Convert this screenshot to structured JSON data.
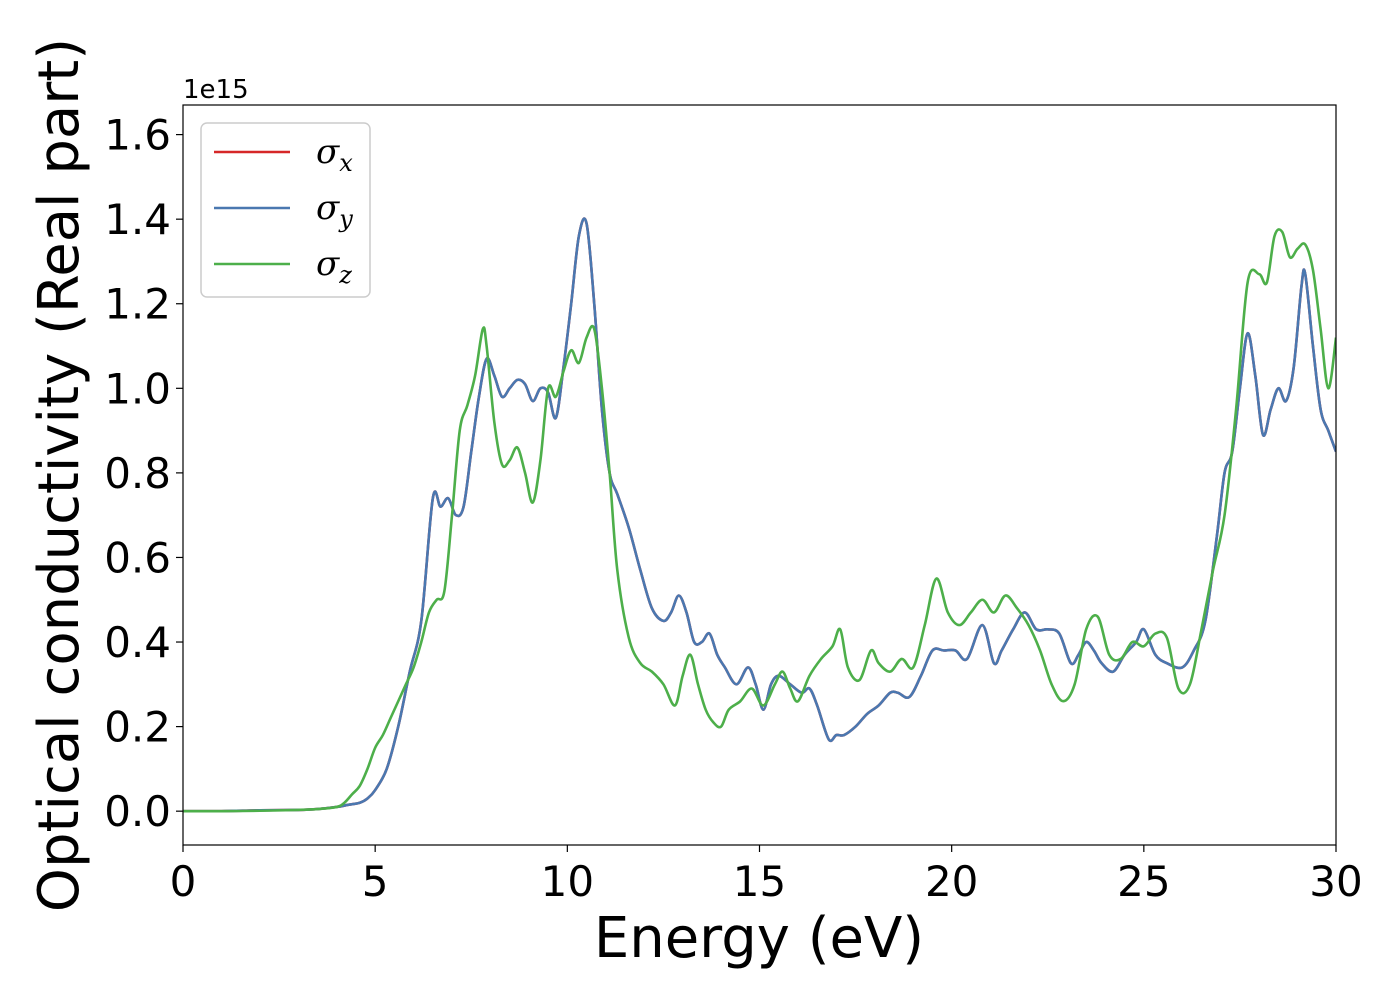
{
  "chart_data": {
    "type": "line",
    "xlabel": "Energy (eV)",
    "ylabel": "Optical conductivity (Real part)",
    "y_offset_label": "1e15",
    "xlim": [
      0,
      30
    ],
    "ylim": [
      -0.08,
      1.67
    ],
    "x_ticks": [
      0,
      5,
      10,
      15,
      20,
      25,
      30
    ],
    "x_tick_labels": [
      "0",
      "5",
      "10",
      "15",
      "20",
      "25",
      "30"
    ],
    "y_ticks": [
      0.0,
      0.2,
      0.4,
      0.6,
      0.8,
      1.0,
      1.2,
      1.4,
      1.6
    ],
    "y_tick_labels": [
      "0.0",
      "0.2",
      "0.4",
      "0.6",
      "0.8",
      "1.0",
      "1.2",
      "1.4",
      "1.6"
    ],
    "grid": false,
    "legend_position": "top-left",
    "series": [
      {
        "name": "σ_x",
        "legend_base": "σ",
        "legend_sub": "x",
        "color": "#d62728",
        "x": [
          0,
          1,
          2,
          3,
          3.5,
          4,
          4.3,
          4.6,
          4.8,
          5,
          5.3,
          5.6,
          5.9,
          6.2,
          6.5,
          6.7,
          6.9,
          7.1,
          7.3,
          7.5,
          7.7,
          7.9,
          8.1,
          8.3,
          8.5,
          8.7,
          8.9,
          9.1,
          9.3,
          9.5,
          9.7,
          9.9,
          10.1,
          10.3,
          10.5,
          10.7,
          10.9,
          11.1,
          11.3,
          11.6,
          11.9,
          12.2,
          12.5,
          12.7,
          12.9,
          13.1,
          13.3,
          13.5,
          13.7,
          13.9,
          14.1,
          14.4,
          14.7,
          14.9,
          15.1,
          15.3,
          15.5,
          15.8,
          16.1,
          16.3,
          16.5,
          16.8,
          17,
          17.2,
          17.5,
          17.8,
          18.1,
          18.4,
          18.6,
          18.9,
          19.2,
          19.5,
          19.8,
          20.1,
          20.4,
          20.8,
          21.1,
          21.3,
          21.6,
          21.9,
          22.2,
          22.5,
          22.8,
          23.1,
          23.3,
          23.5,
          23.7,
          23.9,
          24.2,
          24.5,
          24.8,
          25,
          25.3,
          25.6,
          26,
          26.3,
          26.6,
          26.9,
          27.1,
          27.3,
          27.5,
          27.7,
          27.9,
          28.1,
          28.3,
          28.5,
          28.7,
          28.9,
          29.1,
          29.2,
          29.4,
          29.6,
          29.8,
          30
        ],
        "values": [
          0,
          0,
          0.002,
          0.003,
          0.005,
          0.01,
          0.015,
          0.02,
          0.03,
          0.05,
          0.1,
          0.2,
          0.33,
          0.45,
          0.74,
          0.72,
          0.74,
          0.7,
          0.72,
          0.85,
          0.98,
          1.07,
          1.03,
          0.98,
          1.0,
          1.02,
          1.01,
          0.97,
          1.0,
          0.99,
          0.93,
          1.05,
          1.2,
          1.36,
          1.39,
          1.2,
          0.95,
          0.8,
          0.75,
          0.67,
          0.57,
          0.48,
          0.45,
          0.47,
          0.51,
          0.47,
          0.4,
          0.4,
          0.42,
          0.37,
          0.34,
          0.3,
          0.34,
          0.3,
          0.24,
          0.3,
          0.32,
          0.3,
          0.28,
          0.29,
          0.25,
          0.17,
          0.18,
          0.18,
          0.2,
          0.23,
          0.25,
          0.28,
          0.28,
          0.27,
          0.32,
          0.38,
          0.38,
          0.38,
          0.36,
          0.44,
          0.35,
          0.38,
          0.43,
          0.47,
          0.43,
          0.43,
          0.42,
          0.35,
          0.37,
          0.4,
          0.38,
          0.35,
          0.33,
          0.37,
          0.4,
          0.43,
          0.37,
          0.35,
          0.34,
          0.38,
          0.45,
          0.65,
          0.8,
          0.85,
          1.0,
          1.13,
          1.03,
          0.89,
          0.95,
          1.0,
          0.97,
          1.05,
          1.24,
          1.27,
          1.1,
          0.95,
          0.9,
          0.85
        ]
      },
      {
        "name": "σ_y",
        "legend_base": "σ",
        "legend_sub": "y",
        "color": "#4a78b0",
        "x": [
          0,
          1,
          2,
          3,
          3.5,
          4,
          4.3,
          4.6,
          4.8,
          5,
          5.3,
          5.6,
          5.9,
          6.2,
          6.5,
          6.7,
          6.9,
          7.1,
          7.3,
          7.5,
          7.7,
          7.9,
          8.1,
          8.3,
          8.5,
          8.7,
          8.9,
          9.1,
          9.3,
          9.5,
          9.7,
          9.9,
          10.1,
          10.3,
          10.5,
          10.7,
          10.9,
          11.1,
          11.3,
          11.6,
          11.9,
          12.2,
          12.5,
          12.7,
          12.9,
          13.1,
          13.3,
          13.5,
          13.7,
          13.9,
          14.1,
          14.4,
          14.7,
          14.9,
          15.1,
          15.3,
          15.5,
          15.8,
          16.1,
          16.3,
          16.5,
          16.8,
          17,
          17.2,
          17.5,
          17.8,
          18.1,
          18.4,
          18.6,
          18.9,
          19.2,
          19.5,
          19.8,
          20.1,
          20.4,
          20.8,
          21.1,
          21.3,
          21.6,
          21.9,
          22.2,
          22.5,
          22.8,
          23.1,
          23.3,
          23.5,
          23.7,
          23.9,
          24.2,
          24.5,
          24.8,
          25,
          25.3,
          25.6,
          26,
          26.3,
          26.6,
          26.9,
          27.1,
          27.3,
          27.5,
          27.7,
          27.9,
          28.1,
          28.3,
          28.5,
          28.7,
          28.9,
          29.1,
          29.2,
          29.4,
          29.6,
          29.8,
          30
        ],
        "values": [
          0,
          0,
          0.002,
          0.003,
          0.005,
          0.01,
          0.015,
          0.02,
          0.03,
          0.05,
          0.1,
          0.2,
          0.33,
          0.45,
          0.74,
          0.72,
          0.74,
          0.7,
          0.72,
          0.85,
          0.98,
          1.07,
          1.03,
          0.98,
          1.0,
          1.02,
          1.01,
          0.97,
          1.0,
          0.99,
          0.93,
          1.05,
          1.2,
          1.36,
          1.39,
          1.2,
          0.95,
          0.8,
          0.75,
          0.67,
          0.57,
          0.48,
          0.45,
          0.47,
          0.51,
          0.47,
          0.4,
          0.4,
          0.42,
          0.37,
          0.34,
          0.3,
          0.34,
          0.3,
          0.24,
          0.3,
          0.32,
          0.3,
          0.28,
          0.29,
          0.25,
          0.17,
          0.18,
          0.18,
          0.2,
          0.23,
          0.25,
          0.28,
          0.28,
          0.27,
          0.32,
          0.38,
          0.38,
          0.38,
          0.36,
          0.44,
          0.35,
          0.38,
          0.43,
          0.47,
          0.43,
          0.43,
          0.42,
          0.35,
          0.37,
          0.4,
          0.38,
          0.35,
          0.33,
          0.37,
          0.4,
          0.43,
          0.37,
          0.35,
          0.34,
          0.38,
          0.45,
          0.65,
          0.8,
          0.85,
          1.0,
          1.13,
          1.03,
          0.89,
          0.95,
          1.0,
          0.97,
          1.05,
          1.24,
          1.27,
          1.1,
          0.95,
          0.9,
          0.85
        ]
      },
      {
        "name": "σ_z",
        "legend_base": "σ",
        "legend_sub": "z",
        "color": "#4daf4a",
        "x": [
          0,
          1,
          2,
          3,
          3.5,
          4,
          4.2,
          4.4,
          4.6,
          4.8,
          5,
          5.2,
          5.4,
          5.6,
          5.8,
          6,
          6.2,
          6.4,
          6.6,
          6.8,
          7,
          7.2,
          7.4,
          7.6,
          7.8,
          7.9,
          8.1,
          8.3,
          8.5,
          8.7,
          8.9,
          9.1,
          9.3,
          9.5,
          9.7,
          9.9,
          10.1,
          10.3,
          10.5,
          10.7,
          10.9,
          11.1,
          11.3,
          11.6,
          11.9,
          12.2,
          12.5,
          12.8,
          13.0,
          13.2,
          13.4,
          13.6,
          13.8,
          14.0,
          14.2,
          14.5,
          14.8,
          15.1,
          15.4,
          15.6,
          15.8,
          16.0,
          16.3,
          16.6,
          16.9,
          17.1,
          17.3,
          17.6,
          17.9,
          18.1,
          18.4,
          18.7,
          19.0,
          19.3,
          19.6,
          19.9,
          20.2,
          20.5,
          20.8,
          21.1,
          21.4,
          21.7,
          22.0,
          22.3,
          22.6,
          22.9,
          23.2,
          23.5,
          23.8,
          24.1,
          24.4,
          24.7,
          25.0,
          25.3,
          25.6,
          25.9,
          26.2,
          26.5,
          26.8,
          27.1,
          27.4,
          27.7,
          28.0,
          28.2,
          28.4,
          28.6,
          28.8,
          29.0,
          29.2,
          29.4,
          29.6,
          29.8,
          30
        ],
        "values": [
          0,
          0,
          0.001,
          0.003,
          0.005,
          0.01,
          0.02,
          0.04,
          0.06,
          0.1,
          0.15,
          0.18,
          0.22,
          0.26,
          0.3,
          0.34,
          0.4,
          0.47,
          0.5,
          0.52,
          0.7,
          0.9,
          0.96,
          1.03,
          1.14,
          1.1,
          0.92,
          0.82,
          0.83,
          0.86,
          0.8,
          0.73,
          0.83,
          1.0,
          0.98,
          1.04,
          1.09,
          1.06,
          1.12,
          1.14,
          1.0,
          0.8,
          0.57,
          0.41,
          0.35,
          0.33,
          0.3,
          0.25,
          0.32,
          0.37,
          0.3,
          0.24,
          0.21,
          0.2,
          0.24,
          0.26,
          0.29,
          0.25,
          0.3,
          0.33,
          0.29,
          0.26,
          0.32,
          0.36,
          0.39,
          0.43,
          0.34,
          0.31,
          0.38,
          0.35,
          0.33,
          0.36,
          0.34,
          0.44,
          0.55,
          0.47,
          0.44,
          0.47,
          0.5,
          0.47,
          0.51,
          0.48,
          0.44,
          0.38,
          0.3,
          0.26,
          0.3,
          0.43,
          0.46,
          0.37,
          0.36,
          0.4,
          0.39,
          0.42,
          0.41,
          0.29,
          0.3,
          0.43,
          0.57,
          0.7,
          0.95,
          1.25,
          1.27,
          1.25,
          1.36,
          1.37,
          1.31,
          1.33,
          1.34,
          1.28,
          1.14,
          1.0,
          1.12
        ]
      }
    ]
  }
}
